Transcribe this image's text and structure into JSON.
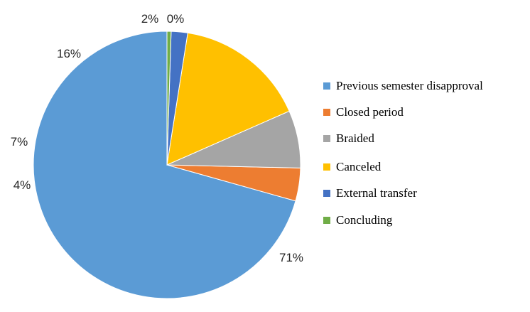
{
  "chart_data": {
    "type": "pie",
    "title": "",
    "slices": [
      {
        "label": "Previous semester disapproval",
        "value": 71,
        "display": "71%",
        "color": "#5B9BD5"
      },
      {
        "label": "Closed period",
        "value": 4,
        "display": "4%",
        "color": "#ED7D31"
      },
      {
        "label": "Braided",
        "value": 7,
        "display": "7%",
        "color": "#A5A5A5"
      },
      {
        "label": "Canceled",
        "value": 16,
        "display": "16%",
        "color": "#FFC000"
      },
      {
        "label": "External transfer",
        "value": 2,
        "display": "2%",
        "color": "#4472C4"
      },
      {
        "label": "Concluding",
        "value": 0.5,
        "display": "0%",
        "color": "#70AD47"
      }
    ],
    "legend": {
      "placement": "right"
    }
  }
}
